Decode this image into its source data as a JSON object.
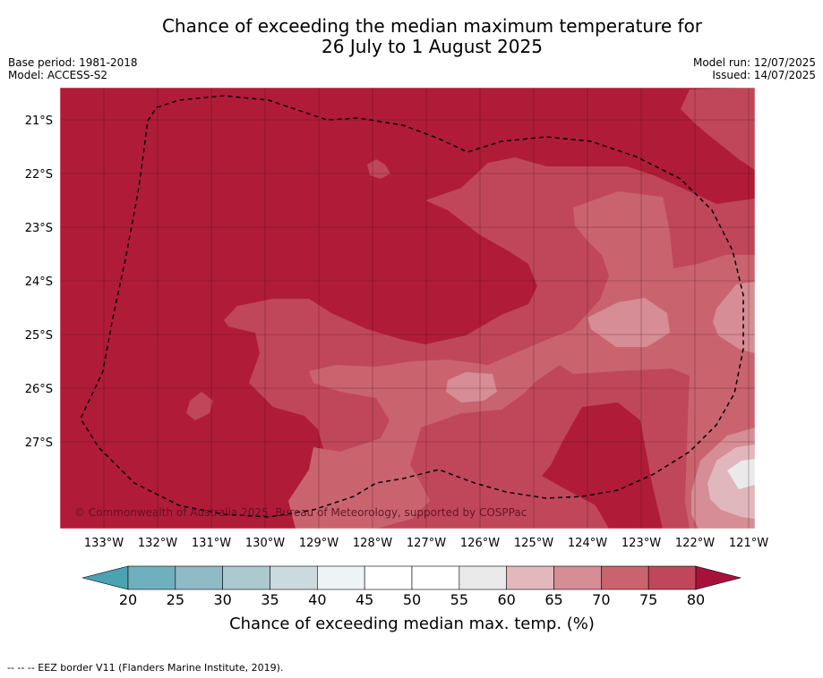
{
  "title": {
    "line1": "Chance of exceeding the median maximum temperature for",
    "line2": "26 July to 1 August 2025"
  },
  "meta": {
    "base_period": "Base period: 1981-2018",
    "model": "Model: ACCESS-S2",
    "model_run": "Model run: 12/07/2025",
    "issued": "Issued: 14/07/2025"
  },
  "map": {
    "latitude_labels": [
      "21°S",
      "22°S",
      "23°S",
      "24°S",
      "25°S",
      "26°S",
      "27°S"
    ],
    "longitude_labels": [
      "133°W",
      "132°W",
      "131°W",
      "130°W",
      "129°W",
      "128°W",
      "127°W",
      "126°W",
      "125°W",
      "124°W",
      "123°W",
      "122°W",
      "121°W"
    ],
    "copyright": "© Commonwealth of Australia 2025, Bureau of Meteorology, supported by COSPPac",
    "colors": {
      "c80": "#b01c38",
      "c75": "#c0475a",
      "c70": "#c9646f",
      "c65": "#d68d95",
      "c60": "#e0b7bc",
      "c55": "#eaeaea"
    }
  },
  "colorbar": {
    "ticks": [
      "20",
      "25",
      "30",
      "35",
      "40",
      "45",
      "50",
      "55",
      "60",
      "65",
      "70",
      "75",
      "80"
    ],
    "colors": [
      "#6fb0be",
      "#8fbac6",
      "#abc9cf",
      "#cadade",
      "#eef3f5",
      "#ffffff",
      "#ffffff",
      "#eaeaea",
      "#e3b8bd",
      "#d68d95",
      "#c9646f",
      "#c0475a"
    ],
    "under_color": "#4aa3b2",
    "over_color": "#a8123a",
    "label": "Chance of exceeding median max. temp. (%)"
  },
  "footnote": "--  --  -- EEZ border V11 (Flanders Marine Institute, 2019)."
}
